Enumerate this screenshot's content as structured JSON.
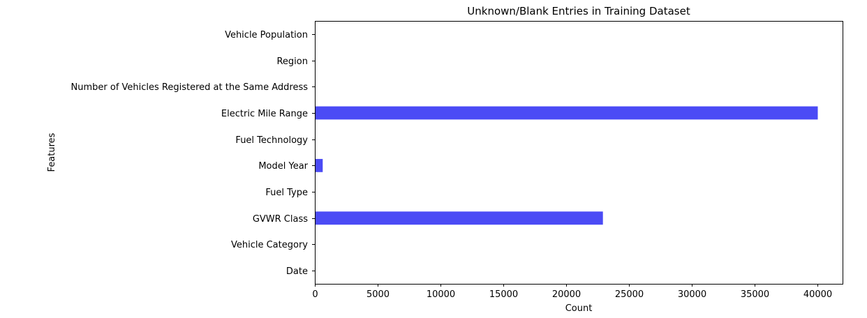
{
  "chart_data": {
    "type": "bar",
    "orientation": "horizontal",
    "title": "Unknown/Blank Entries in Training Dataset",
    "xlabel": "Count",
    "ylabel": "Features",
    "categories": [
      "Date",
      "Vehicle Category",
      "GVWR Class",
      "Fuel Type",
      "Model Year",
      "Fuel Technology",
      "Electric Mile Range",
      "Number of Vehicles Registered at the Same Address",
      "Region",
      "Vehicle Population"
    ],
    "values": [
      0,
      0,
      22900,
      0,
      600,
      0,
      40000,
      0,
      0,
      0
    ],
    "xlim": [
      0,
      42000
    ],
    "xticks": [
      0,
      5000,
      10000,
      15000,
      20000,
      25000,
      30000,
      35000,
      40000
    ],
    "grid": false,
    "bar_color": "#4b4bf5"
  }
}
